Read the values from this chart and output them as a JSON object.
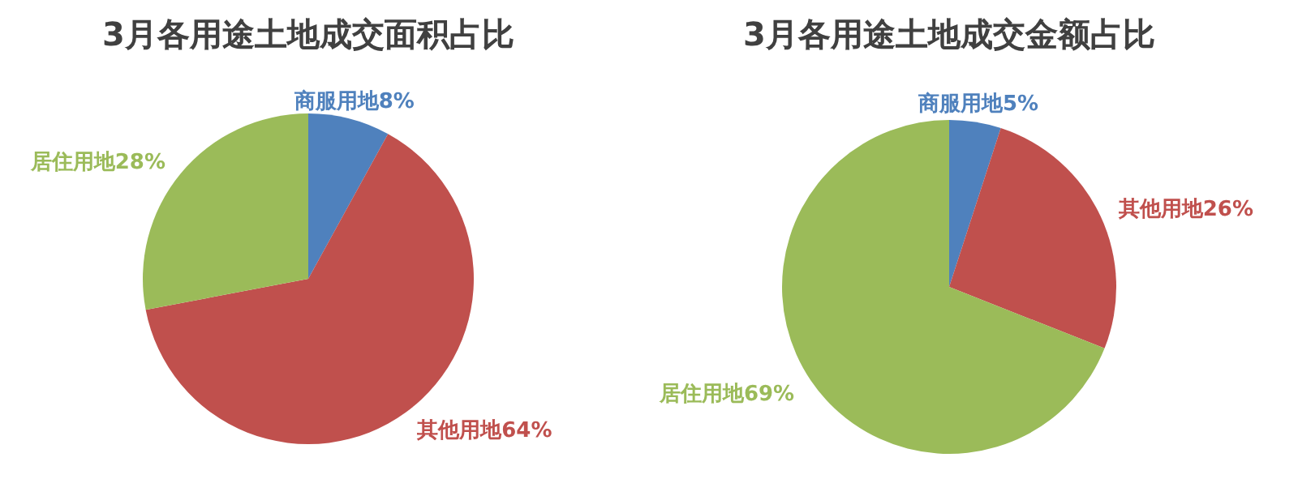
{
  "chart_data": [
    {
      "type": "pie",
      "title": "3月各用途土地成交面积占比",
      "categories": [
        "商服用地",
        "其他用地",
        "居住用地"
      ],
      "values": [
        8,
        64,
        28
      ],
      "colors": [
        "#4f81bd",
        "#c0504d",
        "#9bbb59"
      ],
      "value_labels": [
        "8%",
        "64%",
        "28%"
      ]
    },
    {
      "type": "pie",
      "title": "3月各用途土地成交金额占比",
      "categories": [
        "商服用地",
        "其他用地",
        "居住用地"
      ],
      "values": [
        5,
        26,
        69
      ],
      "colors": [
        "#4f81bd",
        "#c0504d",
        "#9bbb59"
      ],
      "value_labels": [
        "5%",
        "26%",
        "69%"
      ]
    }
  ]
}
